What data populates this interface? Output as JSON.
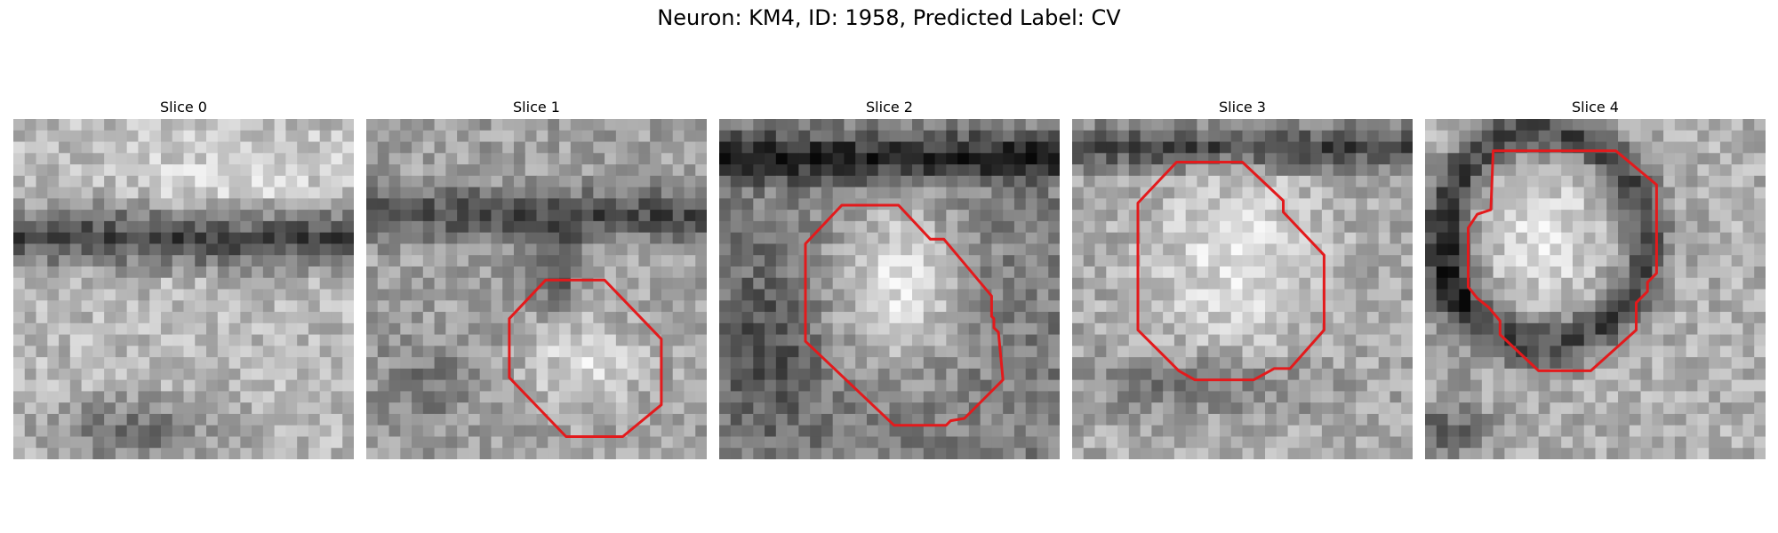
{
  "figure": {
    "title": "Neuron: KM4, ID: 1958, Predicted Label: CV"
  },
  "panels": [
    {
      "title": "Slice 0",
      "has_contour": false
    },
    {
      "title": "Slice 1",
      "has_contour": true
    },
    {
      "title": "Slice 2",
      "has_contour": true
    },
    {
      "title": "Slice 3",
      "has_contour": true
    },
    {
      "title": "Slice 4",
      "has_contour": true
    }
  ],
  "colors": {
    "contour": "#e31a1c",
    "background": "#ffffff"
  }
}
